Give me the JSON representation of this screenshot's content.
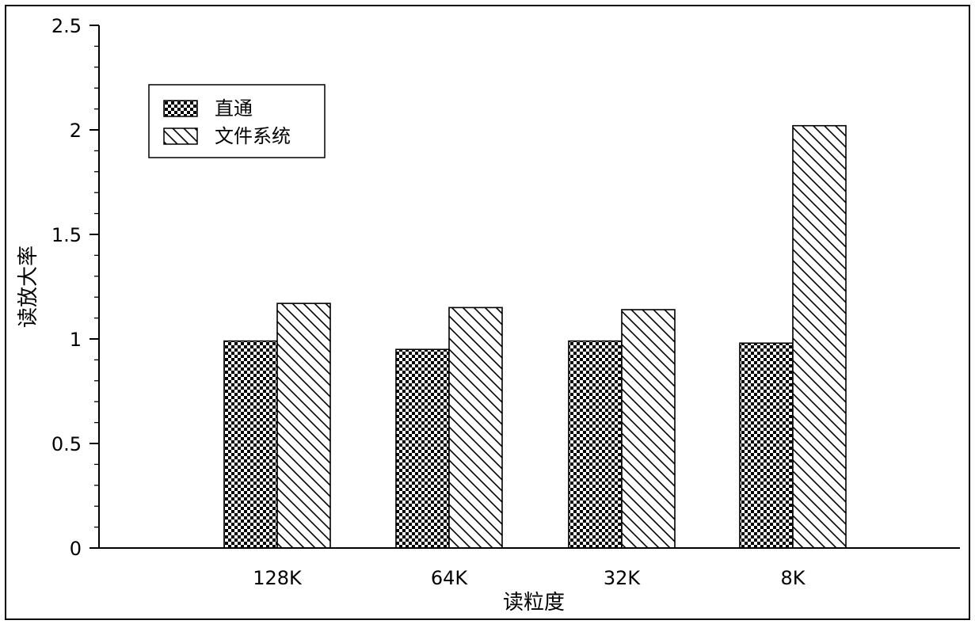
{
  "chart_data": {
    "type": "bar",
    "title": "",
    "xlabel": "读粒度",
    "ylabel": "读放大率",
    "categories": [
      "128K",
      "64K",
      "32K",
      "8K"
    ],
    "series": [
      {
        "name": "直通",
        "values": [
          0.99,
          0.95,
          0.99,
          0.98
        ],
        "pattern": "checker",
        "color": "#000000"
      },
      {
        "name": "文件系统",
        "values": [
          1.17,
          1.15,
          1.14,
          2.02
        ],
        "pattern": "diagonal-hatch",
        "color": "#000000"
      }
    ],
    "ylim": [
      0,
      2.5
    ],
    "yticks": [
      0,
      0.5,
      1,
      1.5,
      2,
      2.5
    ],
    "ytick_labels": [
      "0",
      "0.5",
      "1",
      "1.5",
      "2",
      "2.5"
    ],
    "grid": false,
    "legend_position": "top-left"
  }
}
